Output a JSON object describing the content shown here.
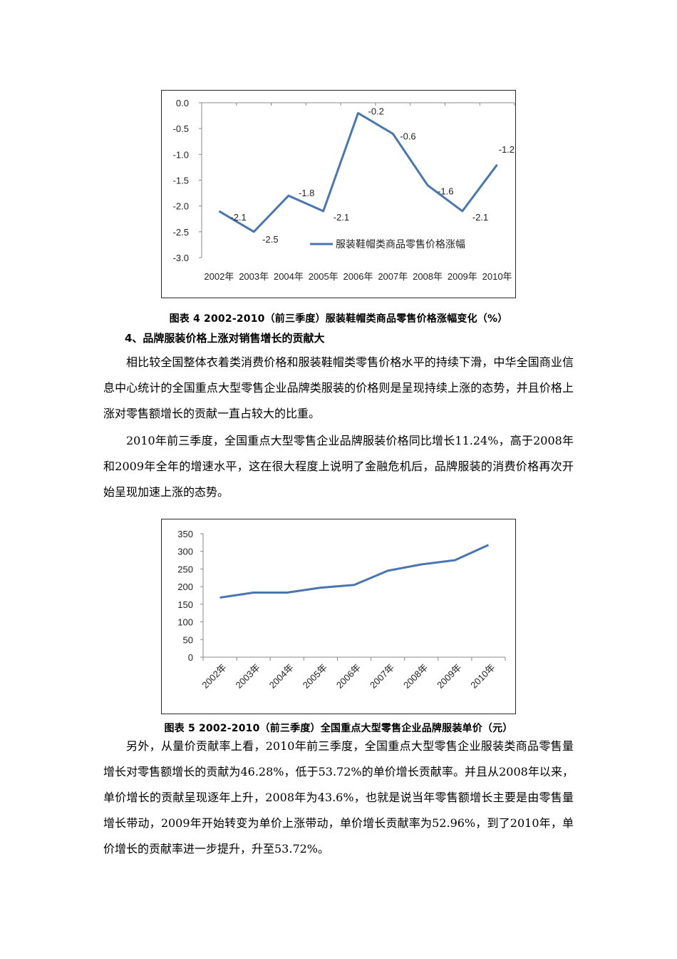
{
  "figure4": {
    "caption": "图表 4 2002-2010（前三季度）服装鞋帽类商品零售价格涨幅变化（%）",
    "legend": "服装鞋帽类商品零售价格涨幅",
    "line_color": "#4a76b0"
  },
  "section": {
    "heading": "4、品牌服装价格上涨对销售增长的贡献大"
  },
  "paragraphs": {
    "p1": "相比较全国整体衣着类消费价格和服装鞋帽类零售价格水平的持续下滑，中华全国商业信息中心统计的全国重点大型零售企业品牌类服装的价格则是呈现持续上涨的态势，并且价格上涨对零售额增长的贡献一直占较大的比重。",
    "p2": "2010年前三季度，全国重点大型零售企业品牌服装价格同比增长11.24%，高于2008年和2009年全年的增速水平，这在很大程度上说明了金融危机后，品牌服装的消费价格再次开始呈现加速上涨的态势。",
    "p3": "另外，从量价贡献率上看，2010年前三季度，全国重点大型零售企业服装类商品零售量增长对零售额增长的贡献为46.28%，低于53.72%的单价增长贡献率。并且从2008年以来，单价增长的贡献呈现逐年上升，2008年为43.6%，也就是说当年零售额增长主要是由零售量增长带动，2009年开始转变为单价上涨带动，单价增长贡献率为52.96%，到了2010年，单价增长的贡献率进一步提升，升至53.72%。"
  },
  "figure5": {
    "caption": "图表 5 2002-2010（前三季度）全国重点大型零售企业品牌服装单价（元）",
    "line_color": "#4a76b0"
  },
  "chart_data": [
    {
      "type": "line",
      "title": "2002-2010（前三季度）服装鞋帽类商品零售价格涨幅变化（%）",
      "categories": [
        "2002年",
        "2003年",
        "2004年",
        "2005年",
        "2006年",
        "2007年",
        "2008年",
        "2009年",
        "2010年"
      ],
      "series": [
        {
          "name": "服装鞋帽类商品零售价格涨幅",
          "values": [
            -2.1,
            -2.5,
            -1.8,
            -2.1,
            -0.2,
            -0.6,
            -1.6,
            -2.1,
            -1.2
          ]
        }
      ],
      "data_labels": [
        "-2.1",
        "-2.5",
        "-1.8",
        "-2.1",
        "-0.2",
        "-0.6",
        "-1.6",
        "-2.1",
        "-1.2"
      ],
      "yticks": [
        "0.0",
        "-0.5",
        "-1.0",
        "-1.5",
        "-2.0",
        "-2.5",
        "-3.0"
      ],
      "ylim": [
        -3.0,
        0.0
      ],
      "xlabel": "",
      "ylabel": "",
      "grid": false,
      "legend_position": "inside-lower-right",
      "x_axis_position": "top"
    },
    {
      "type": "line",
      "title": "2002-2010（前三季度）全国重点大型零售企业品牌服装单价（元）",
      "categories": [
        "2002年",
        "2003年",
        "2004年",
        "2005年",
        "2006年",
        "2007年",
        "2008年",
        "2009年",
        "2010年"
      ],
      "series": [
        {
          "name": "品牌服装单价",
          "values": [
            169,
            183,
            183,
            197,
            205,
            245,
            263,
            275,
            318
          ]
        }
      ],
      "yticks": [
        "350",
        "300",
        "250",
        "200",
        "150",
        "100",
        "50",
        "0"
      ],
      "ylim": [
        0,
        350
      ],
      "xlabel": "",
      "ylabel": "",
      "grid": false,
      "legend_position": "none",
      "x_tick_rotation": -45
    }
  ]
}
